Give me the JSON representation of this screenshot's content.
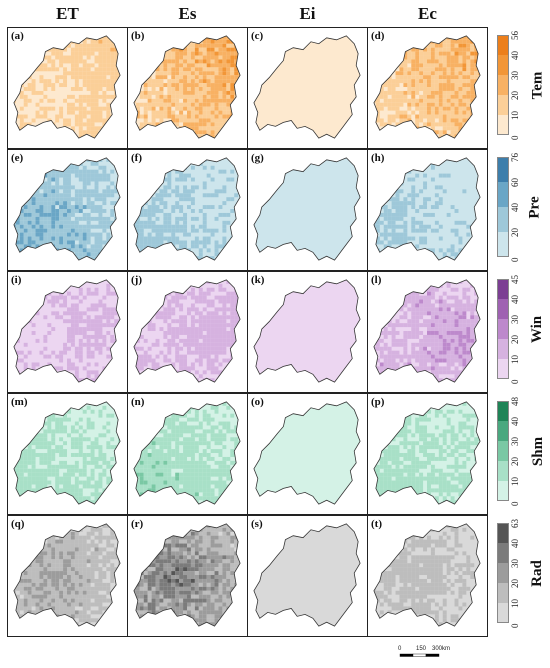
{
  "columns": [
    "ET",
    "Es",
    "Ei",
    "Ec"
  ],
  "rows": [
    {
      "variable": "Tem",
      "ticks": [
        "0",
        "10",
        "20",
        "30",
        "40",
        "56"
      ],
      "colors": [
        "#fde9cf",
        "#fbcf98",
        "#f8b163",
        "#f29637",
        "#ec7f1b"
      ],
      "panels": [
        "(a)",
        "(b)",
        "(c)",
        "(d)"
      ],
      "intensity": [
        0.35,
        0.6,
        0.05,
        0.55
      ]
    },
    {
      "variable": "Pre",
      "ticks": [
        "0",
        "20",
        "40",
        "60",
        "76"
      ],
      "colors": [
        "#cde5ec",
        "#9ec8d9",
        "#6aa6c6",
        "#3d7eab"
      ],
      "panels": [
        "(e)",
        "(f)",
        "(g)",
        "(h)"
      ],
      "intensity": [
        0.6,
        0.4,
        0.05,
        0.35
      ]
    },
    {
      "variable": "Win",
      "ticks": [
        "0",
        "10",
        "20",
        "30",
        "40",
        "45"
      ],
      "colors": [
        "#ecd6f1",
        "#d6b2e0",
        "#bd89cc",
        "#9f62b2",
        "#7c3f93"
      ],
      "panels": [
        "(i)",
        "(j)",
        "(k)",
        "(l)"
      ],
      "intensity": [
        0.3,
        0.35,
        0.05,
        0.45
      ]
    },
    {
      "variable": "Shm",
      "ticks": [
        "0",
        "10",
        "20",
        "30",
        "40",
        "48"
      ],
      "colors": [
        "#d4f2e6",
        "#a8e0c7",
        "#7ac8a4",
        "#4aa87f",
        "#1f8457"
      ],
      "panels": [
        "(m)",
        "(n)",
        "(o)",
        "(p)"
      ],
      "intensity": [
        0.35,
        0.4,
        0.05,
        0.35
      ]
    },
    {
      "variable": "Rad",
      "ticks": [
        "0",
        "10",
        "20",
        "30",
        "40",
        "63"
      ],
      "colors": [
        "#d9d9d9",
        "#bdbdbd",
        "#9c9c9c",
        "#7b7b7b",
        "#555555"
      ],
      "panels": [
        "(q)",
        "(r)",
        "(s)",
        "(t)"
      ],
      "intensity": [
        0.45,
        0.7,
        0.05,
        0.3
      ]
    }
  ],
  "scalebar": {
    "ticks": [
      "0",
      "150",
      "300"
    ],
    "unit": "km"
  }
}
